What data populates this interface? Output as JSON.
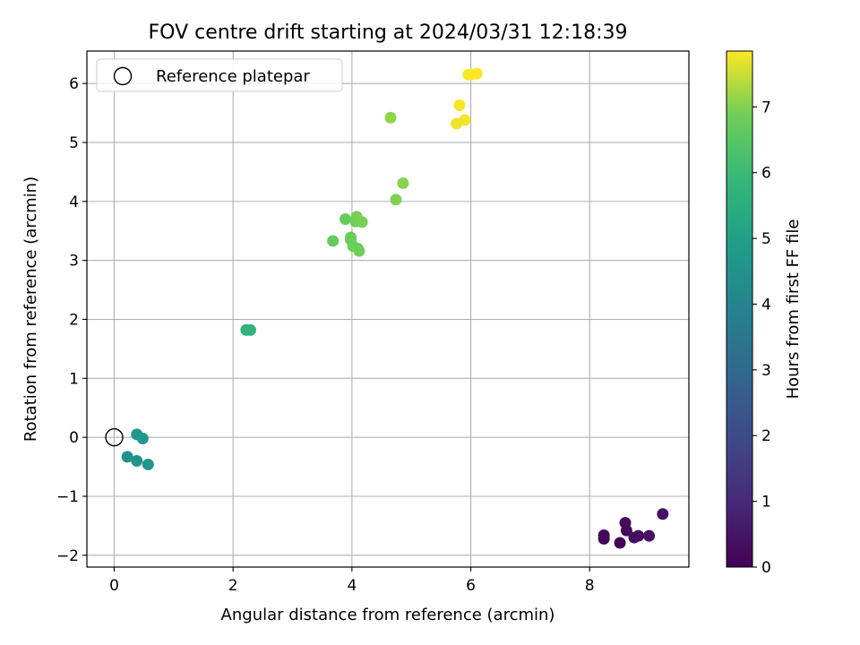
{
  "chart_data": {
    "type": "scatter",
    "title": "FOV centre drift starting at 2024/03/31 12:18:39",
    "xlabel": "Angular distance from reference (arcmin)",
    "ylabel": "Rotation from reference (arcmin)",
    "xlim": [
      -0.46,
      9.67
    ],
    "ylim": [
      -2.2,
      6.55
    ],
    "xticks": [
      0,
      2,
      4,
      6,
      8
    ],
    "yticks": [
      -2,
      -1,
      0,
      1,
      2,
      3,
      4,
      5,
      6
    ],
    "ytick_labels": [
      "−2",
      "−1",
      "0",
      "1",
      "2",
      "3",
      "4",
      "5",
      "6"
    ],
    "grid": true,
    "legend": {
      "placement": "top-left",
      "entries": [
        "Reference platepar"
      ]
    },
    "reference_point": {
      "label": "Reference platepar",
      "x": 0,
      "y": 0
    },
    "colorbar": {
      "label": "Hours from first FF file",
      "range": [
        0,
        7.85
      ],
      "ticks": [
        0,
        1,
        2,
        3,
        4,
        5,
        6,
        7
      ],
      "colormap": "viridis"
    },
    "points": [
      {
        "x": 8.51,
        "y": -1.79,
        "t": 0.0
      },
      {
        "x": 8.24,
        "y": -1.72,
        "t": 0.1
      },
      {
        "x": 8.24,
        "y": -1.66,
        "t": 0.15
      },
      {
        "x": 8.62,
        "y": -1.58,
        "t": 0.2
      },
      {
        "x": 8.6,
        "y": -1.45,
        "t": 0.25
      },
      {
        "x": 8.75,
        "y": -1.7,
        "t": 0.3
      },
      {
        "x": 8.82,
        "y": -1.67,
        "t": 0.35
      },
      {
        "x": 9.0,
        "y": -1.67,
        "t": 0.4
      },
      {
        "x": 9.23,
        "y": -1.3,
        "t": 0.45
      },
      {
        "x": 0.22,
        "y": -0.33,
        "t": 4.5
      },
      {
        "x": 0.38,
        "y": -0.4,
        "t": 4.55
      },
      {
        "x": 0.57,
        "y": -0.46,
        "t": 4.6
      },
      {
        "x": 0.38,
        "y": 0.05,
        "t": 4.65
      },
      {
        "x": 0.48,
        "y": -0.02,
        "t": 4.7
      },
      {
        "x": 2.22,
        "y": 1.82,
        "t": 5.7
      },
      {
        "x": 2.29,
        "y": 1.82,
        "t": 5.75
      },
      {
        "x": 3.68,
        "y": 3.33,
        "t": 6.7
      },
      {
        "x": 3.89,
        "y": 3.7,
        "t": 6.75
      },
      {
        "x": 3.98,
        "y": 3.35,
        "t": 6.78
      },
      {
        "x": 3.98,
        "y": 3.39,
        "t": 6.8
      },
      {
        "x": 4.02,
        "y": 3.24,
        "t": 6.82
      },
      {
        "x": 4.1,
        "y": 3.2,
        "t": 6.85
      },
      {
        "x": 4.12,
        "y": 3.16,
        "t": 6.87
      },
      {
        "x": 4.06,
        "y": 3.66,
        "t": 6.9
      },
      {
        "x": 4.08,
        "y": 3.74,
        "t": 6.92
      },
      {
        "x": 4.17,
        "y": 3.65,
        "t": 6.95
      },
      {
        "x": 4.74,
        "y": 4.03,
        "t": 7.0
      },
      {
        "x": 4.86,
        "y": 4.31,
        "t": 7.05
      },
      {
        "x": 4.65,
        "y": 5.42,
        "t": 7.1
      },
      {
        "x": 5.76,
        "y": 5.32,
        "t": 7.75
      },
      {
        "x": 5.9,
        "y": 5.38,
        "t": 7.77
      },
      {
        "x": 5.81,
        "y": 5.63,
        "t": 7.8
      },
      {
        "x": 5.96,
        "y": 6.15,
        "t": 7.82
      },
      {
        "x": 6.01,
        "y": 6.15,
        "t": 7.83
      },
      {
        "x": 6.1,
        "y": 6.17,
        "t": 7.85
      }
    ]
  }
}
